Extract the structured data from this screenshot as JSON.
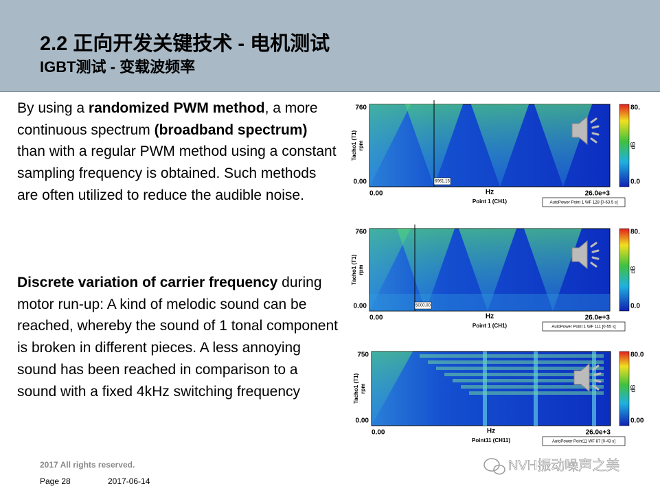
{
  "header": {
    "title": "2.2 正向开发关键技术 - 电机测试",
    "subtitle": "IGBT测试  - 变载波频率"
  },
  "paragraphs": [
    [
      {
        "text": "By using a ",
        "bold": false
      },
      {
        "text": "randomized PWM method",
        "bold": true
      },
      {
        "text": ", a more continuous spectrum ",
        "bold": false
      },
      {
        "text": "(broadband spectrum)",
        "bold": true
      },
      {
        "text": " than with a regular PWM method using a constant sampling frequency is obtained. Such methods are often utilized to reduce the audible noise.",
        "bold": false
      }
    ],
    [
      {
        "text": "Discrete variation of carrier frequency",
        "bold": true
      },
      {
        "text": " during motor run-up: A kind of melodic sound can be reached, whereby the sound of 1 tonal component is broken in different pieces. A less annoying sound has been reached in comparison to a sound with a fixed 4kHz switching frequency",
        "bold": false
      }
    ]
  ],
  "spectrograms": [
    {
      "y_max": "760",
      "y_min": "0.00",
      "y_label": "Tacho1 (T1)",
      "y_unit": "rpm",
      "x_min": "0.00",
      "x_unit": "Hz",
      "x_max": "26.0e+3",
      "x_label": "Point 1 (CH1)",
      "legend": "AutoPower Point 1 WF 128 [0-63.5 s]",
      "cursor": "6961.15",
      "scale_max": "80.",
      "scale_unit": "dB",
      "scale_min": "0.0"
    },
    {
      "y_max": "760",
      "y_min": "0.00",
      "y_label": "Tacho1 (T1)",
      "y_unit": "rpm",
      "x_min": "0.00",
      "x_unit": "Hz",
      "x_max": "26.0e+3",
      "x_label": "Point 1 (CH1)",
      "legend": "AutoPower Point 1 WF 111 [0-55 s]",
      "cursor": "5000.00",
      "scale_max": "80.",
      "scale_unit": "dB",
      "scale_min": "0.0"
    },
    {
      "y_max": "750",
      "y_min": "0.00",
      "y_label": "Tacho1 (T1)",
      "y_unit": "rpm",
      "x_min": "0.00",
      "x_unit": "Hz",
      "x_max": "26.0e+3",
      "x_label": "Point11 (CH11)",
      "legend": "AutoPower Point11 WF 87 [0-43 s]",
      "scale_max": "80.0",
      "scale_unit": "dB",
      "scale_min": "0.00"
    }
  ],
  "footer": {
    "copyright": "2017 All rights reserved.",
    "page": "Page 28",
    "date": "2017-06-14",
    "watermark": "NVH振动噪声之美"
  }
}
